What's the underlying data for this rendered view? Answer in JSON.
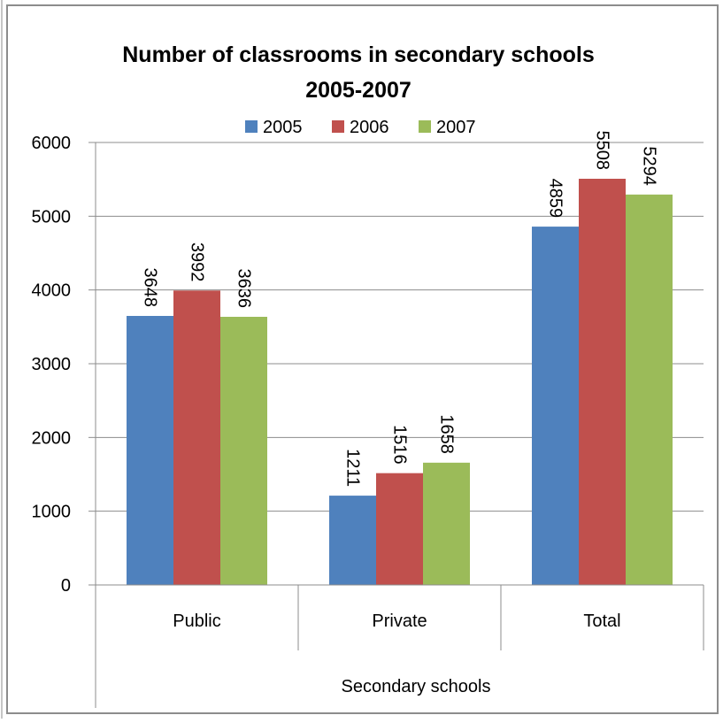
{
  "chart_data": {
    "type": "bar",
    "title_lines": [
      "Number of classrooms in secondary schools",
      "2005-2007"
    ],
    "categories": [
      "Public",
      "Private",
      "Total"
    ],
    "xlabel": "Secondary schools",
    "ylabel": "",
    "ylim": [
      0,
      6000
    ],
    "yticks": [
      0,
      1000,
      2000,
      3000,
      4000,
      5000,
      6000
    ],
    "grid": true,
    "legend_position": "top",
    "data_labels": "rotated-vertical",
    "series": [
      {
        "name": "2005",
        "color": "#4F81BD",
        "values": [
          3648,
          1211,
          4859
        ]
      },
      {
        "name": "2006",
        "color": "#C0504D",
        "values": [
          3992,
          1516,
          5508
        ]
      },
      {
        "name": "2007",
        "color": "#9BBB59",
        "values": [
          3636,
          1658,
          5294
        ]
      }
    ]
  }
}
